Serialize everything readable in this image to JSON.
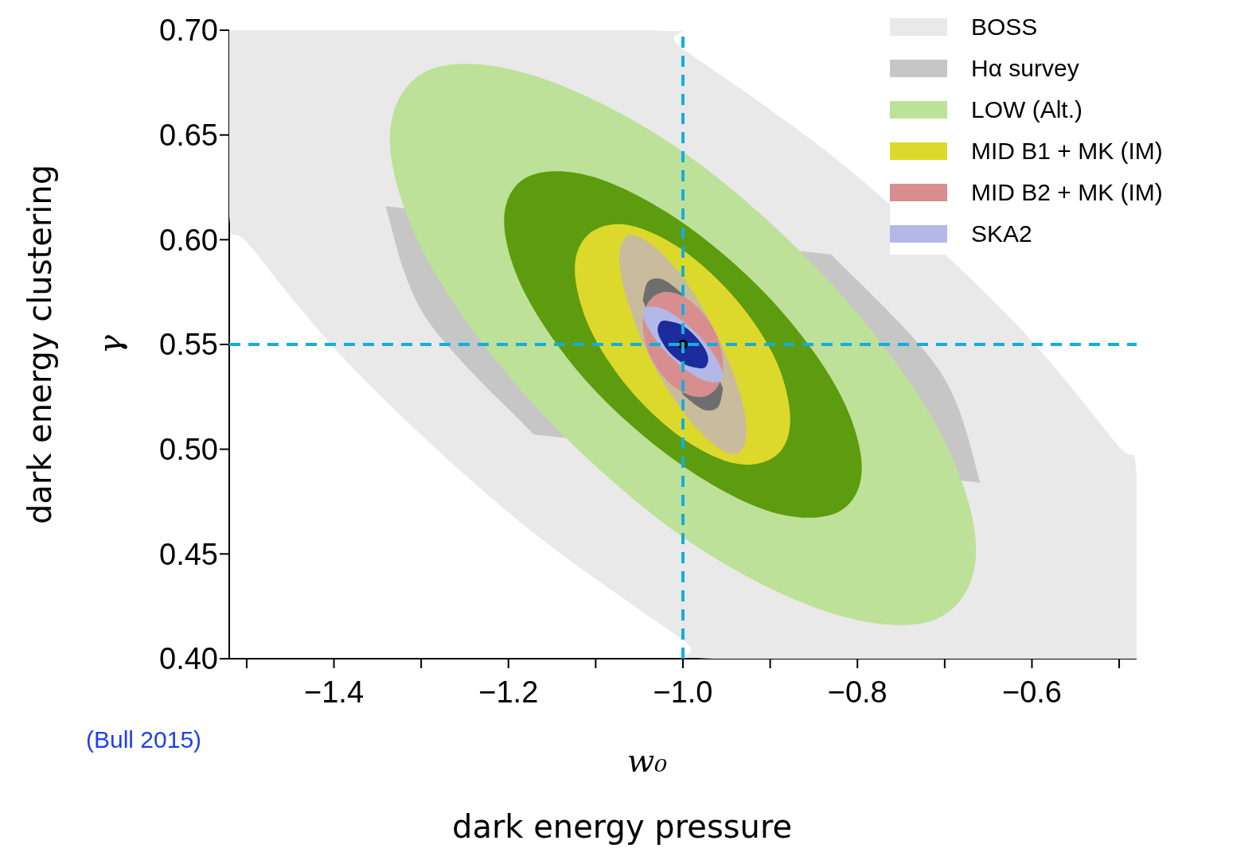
{
  "chart_data": {
    "type": "area",
    "xlabel": "w₀",
    "ylabel": "γ",
    "annotations": [
      "(Bull 2015)",
      "dark energy pressure",
      "dark energy clustering"
    ],
    "xlim": [
      -1.52,
      -0.48
    ],
    "ylim": [
      0.4,
      0.7
    ],
    "xticks": [
      {
        "value": -1.5,
        "label": null
      },
      {
        "value": -1.4,
        "label": "−1.4"
      },
      {
        "value": -1.3,
        "label": null
      },
      {
        "value": -1.2,
        "label": "−1.2"
      },
      {
        "value": -1.1,
        "label": null
      },
      {
        "value": -1.0,
        "label": "−1.0"
      },
      {
        "value": -0.9,
        "label": null
      },
      {
        "value": -0.8,
        "label": "−0.8"
      },
      {
        "value": -0.7,
        "label": null
      },
      {
        "value": -0.6,
        "label": "−0.6"
      },
      {
        "value": -0.5,
        "label": null
      }
    ],
    "yticks": [
      {
        "value": 0.4,
        "label": "0.40"
      },
      0.45,
      {
        "value": 0.5,
        "label": "0.50"
      },
      0.55,
      {
        "value": 0.6,
        "label": "0.60"
      },
      0.65,
      {
        "value": 0.7,
        "label": "0.70"
      }
    ],
    "legend": "top right",
    "series": [
      {
        "name": "BOSS",
        "color": "#e9e9e9",
        "x": [
          -1.52,
          -1.04,
          -1.0,
          -0.814,
          -0.628,
          -0.504,
          -0.48,
          -0.48,
          -0.966,
          -1.0,
          -1.186,
          -1.372,
          -1.496,
          -1.52
        ],
        "values": [
          0.7,
          0.7,
          0.691,
          0.635,
          0.564,
          0.503,
          0.488,
          0.4,
          0.4,
          0.409,
          0.465,
          0.536,
          0.597,
          0.611
        ]
      },
      {
        "name": "Hα survey",
        "color": "#c6c6c6",
        "x": [
          -0.659,
          null,
          null,
          null,
          -1.171,
          -1.295,
          -1.341,
          null,
          null,
          null,
          -0.83,
          -0.705
        ],
        "values": [
          0.484,
          null,
          null,
          null,
          0.507,
          0.563,
          0.616,
          null,
          null,
          null,
          0.593,
          0.537
        ]
      },
      {
        "name": "LOW (Alt.)",
        "color": "#bde198",
        "x": [
          -0.664,
          -0.709,
          -0.832,
          -1.0,
          -1.168,
          -1.291,
          -1.336,
          -1.291,
          -1.168,
          -1.0,
          -0.832,
          -0.709
        ],
        "values": [
          0.452,
          0.419,
          0.422,
          0.458,
          0.52,
          0.589,
          0.648,
          0.681,
          0.678,
          0.642,
          0.58,
          0.511
        ]
      },
      {
        "color": "#5c9c0e",
        "x": [
          -0.795,
          -0.822,
          -0.898,
          -1.0,
          -1.103,
          -1.178,
          -1.205,
          -1.178,
          -1.103,
          -1.0,
          -0.898,
          -0.822
        ],
        "values": [
          0.491,
          0.47,
          0.47,
          0.492,
          0.529,
          0.572,
          0.609,
          0.63,
          0.63,
          0.608,
          0.571,
          0.528
        ]
      },
      {
        "name": "MID B1 + MK (IM)",
        "color": "#dcd92c",
        "x": [
          -0.877,
          -0.893,
          -0.938,
          -1.0,
          -1.062,
          -1.107,
          -1.124,
          -1.107,
          -1.062,
          -1.0,
          -0.938,
          -0.893
        ],
        "values": [
          0.514,
          0.497,
          0.493,
          0.505,
          0.529,
          0.558,
          0.586,
          0.603,
          0.607,
          0.595,
          0.571,
          0.542
        ]
      },
      {
        "color": "#c8bc9c",
        "x": [
          -0.927,
          -0.937,
          -0.964,
          -1.0,
          -1.037,
          -1.063,
          -1.073,
          -1.063,
          -1.037,
          -1.0,
          -0.964,
          -0.937
        ],
        "values": [
          0.509,
          0.498,
          0.502,
          0.518,
          0.543,
          0.57,
          0.591,
          0.602,
          0.598,
          0.582,
          0.557,
          0.53
        ]
      },
      {
        "color": "#6e6e6e",
        "x": [
          -0.954,
          -0.96,
          -0.977,
          -1.0,
          null,
          null,
          -1.046,
          -1.04,
          -1.023,
          -1.0,
          null,
          null
        ],
        "values": [
          0.529,
          0.52,
          0.519,
          0.526,
          null,
          null,
          0.571,
          0.58,
          0.581,
          0.574,
          null,
          null
        ]
      },
      {
        "name": "MID B2 + MK (IM)",
        "color": "#d88e8e",
        "x": [
          -0.954,
          -0.96,
          -0.977,
          -1.0,
          -1.023,
          -1.04,
          -1.046,
          -1.04,
          -1.023,
          -1.0,
          -0.977,
          -0.96
        ],
        "values": [
          0.54,
          0.53,
          0.525,
          0.527,
          0.535,
          0.547,
          0.56,
          0.57,
          0.575,
          0.573,
          0.565,
          0.553
        ]
      },
      {
        "name": "SKA2",
        "color": "#b4b8e8",
        "x": [
          -0.954,
          -0.96,
          -0.977,
          -1.0,
          -1.023,
          -1.04,
          -1.046,
          -1.04,
          -1.023,
          -1.0,
          -0.977,
          -0.96
        ],
        "values": [
          0.535,
          0.532,
          0.533,
          0.539,
          0.548,
          0.558,
          0.565,
          0.568,
          0.567,
          0.561,
          0.552,
          0.542
        ]
      },
      {
        "color": "#1c2c9c",
        "x": [
          -0.971,
          -0.975,
          -0.986,
          -1.0,
          -1.015,
          -1.025,
          -1.029,
          -1.025,
          -1.015,
          -1.0,
          -0.986,
          -0.975
        ],
        "values": [
          0.543,
          0.539,
          0.539,
          0.541,
          0.546,
          0.552,
          0.557,
          0.561,
          0.561,
          0.559,
          0.554,
          0.548
        ]
      },
      {
        "type": "scatter",
        "marker": "circle",
        "color": "#000000",
        "x": [
          -1.0
        ],
        "values": [
          0.55
        ]
      }
    ],
    "ref_lines": [
      {
        "axis": "x",
        "value": -1.0,
        "color": "#12aee0",
        "line_style": "dashed"
      },
      {
        "axis": "y",
        "value": 0.55,
        "color": "#12aee0",
        "line_style": "dashed"
      }
    ]
  }
}
